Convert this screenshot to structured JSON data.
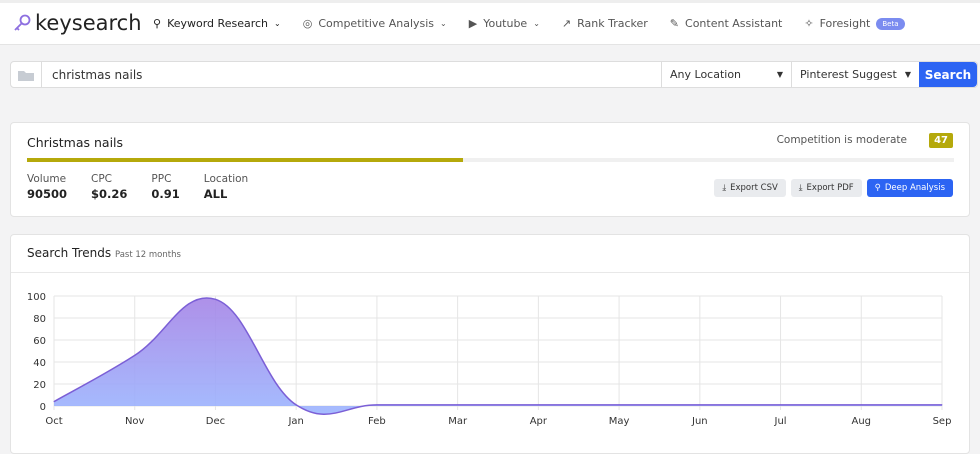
{
  "header": {
    "logo": "keysearch",
    "nav": [
      {
        "label": "Keyword Research",
        "icon": "search-icon",
        "caret": true
      },
      {
        "label": "Competitive Analysis",
        "icon": "target-icon",
        "caret": true
      },
      {
        "label": "Youtube",
        "icon": "youtube-icon",
        "caret": true
      },
      {
        "label": "Rank Tracker",
        "icon": "trend-icon",
        "caret": false
      },
      {
        "label": "Content Assistant",
        "icon": "feather-icon",
        "caret": false
      },
      {
        "label": "Foresight",
        "icon": "sparkle-icon",
        "caret": false
      }
    ],
    "beta": "Beta"
  },
  "search": {
    "value": "christmas nails",
    "location": "Any Location",
    "source": "Pinterest Suggest",
    "button": "Search"
  },
  "summary": {
    "keyword": "Christmas nails",
    "competition_text": "Competition is moderate",
    "score": "47",
    "score_fraction": 0.47,
    "score_color": "#b5a90b",
    "stats": [
      {
        "label": "Volume",
        "value": "90500"
      },
      {
        "label": "CPC",
        "value": "$0.26"
      },
      {
        "label": "PPC",
        "value": "0.91"
      },
      {
        "label": "Location",
        "value": "ALL"
      }
    ],
    "buttons": {
      "csv": "Export CSV",
      "pdf": "Export PDF",
      "deep": "Deep Analysis"
    }
  },
  "trends": {
    "title": "Search Trends",
    "subtitle": "Past 12 months"
  },
  "chart_data": {
    "type": "area",
    "categories": [
      "Oct",
      "Nov",
      "Dec",
      "Jan",
      "Feb",
      "Mar",
      "Apr",
      "May",
      "Jun",
      "Jul",
      "Aug",
      "Sep"
    ],
    "values": [
      4,
      46,
      97,
      1,
      1,
      1,
      1,
      1,
      1,
      1,
      1,
      1
    ],
    "ylim": [
      0,
      100
    ],
    "yticks": [
      0,
      20,
      40,
      60,
      80,
      100
    ],
    "grid": true,
    "color": "#7b5fd6"
  }
}
